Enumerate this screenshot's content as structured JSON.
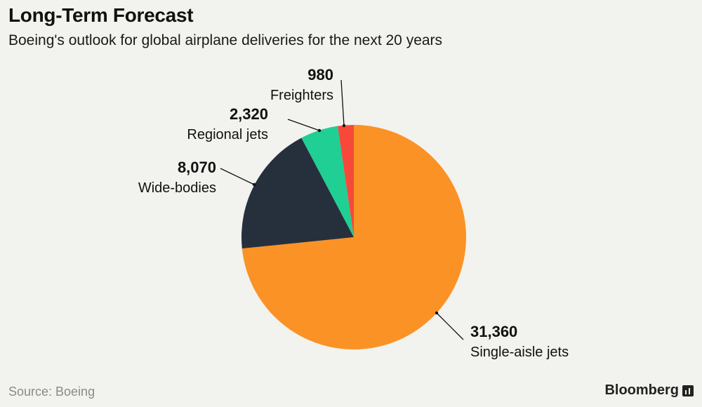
{
  "header": {
    "title": "Long-Term Forecast",
    "subtitle": "Boeing's outlook for global airplane deliveries for the next 20 years"
  },
  "footer": {
    "source": "Source: Boeing",
    "brand": "Bloomberg"
  },
  "chart_data": {
    "type": "pie",
    "start_angle_deg": 0,
    "direction": "clockwise",
    "slices": [
      {
        "label": "Single-aisle jets",
        "value": 31360,
        "value_label": "31,360",
        "color": "#fb9225"
      },
      {
        "label": "Wide-bodies",
        "value": 8070,
        "value_label": "8,070",
        "color": "#26303d"
      },
      {
        "label": "Regional jets",
        "value": 2320,
        "value_label": "2,320",
        "color": "#1fcf93"
      },
      {
        "label": "Freighters",
        "value": 980,
        "value_label": "980",
        "color": "#f6493a"
      }
    ]
  }
}
